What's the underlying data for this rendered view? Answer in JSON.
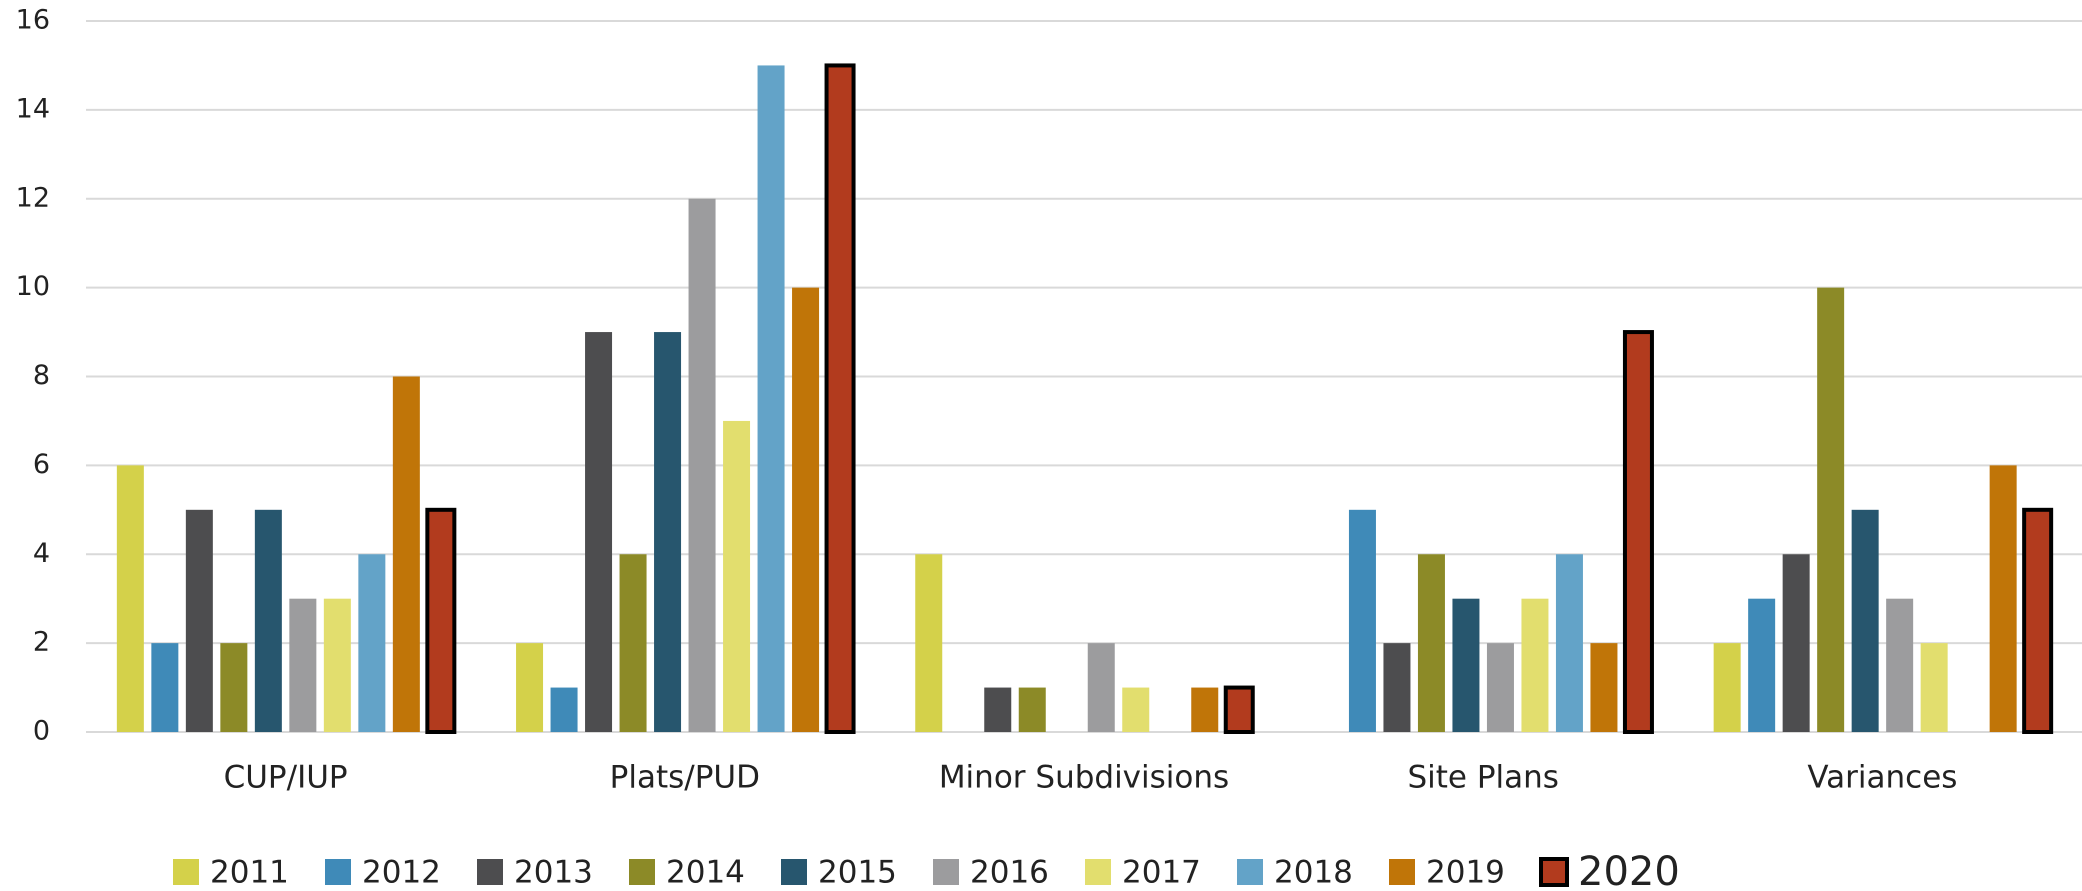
{
  "chart_data": {
    "type": "bar",
    "categories": [
      "CUP/IUP",
      "Plats/PUD",
      "Minor Subdivisions",
      "Site Plans",
      "Variances"
    ],
    "series": [
      {
        "name": "2011",
        "color": "#d4d14a",
        "values": [
          6,
          2,
          4,
          0,
          2
        ]
      },
      {
        "name": "2012",
        "color": "#3f8ab8",
        "values": [
          2,
          1,
          0,
          5,
          3
        ]
      },
      {
        "name": "2013",
        "color": "#4d4d4f",
        "values": [
          5,
          9,
          1,
          2,
          4
        ]
      },
      {
        "name": "2014",
        "color": "#8c8a27",
        "values": [
          2,
          4,
          1,
          4,
          10
        ]
      },
      {
        "name": "2015",
        "color": "#27566e",
        "values": [
          5,
          9,
          0,
          3,
          5
        ]
      },
      {
        "name": "2016",
        "color": "#9c9c9e",
        "values": [
          3,
          12,
          2,
          2,
          3
        ]
      },
      {
        "name": "2017",
        "color": "#e2de6e",
        "values": [
          3,
          7,
          1,
          3,
          2
        ]
      },
      {
        "name": "2018",
        "color": "#63a3c8",
        "values": [
          4,
          15,
          0,
          4,
          0
        ]
      },
      {
        "name": "2019",
        "color": "#c07508",
        "values": [
          8,
          10,
          1,
          2,
          6
        ]
      },
      {
        "name": "2020",
        "color": "#b23b1e",
        "edgecolor": "#000000",
        "values": [
          5,
          15,
          1,
          9,
          5
        ]
      }
    ],
    "ylim": [
      0,
      16
    ],
    "yticks": [
      0,
      2,
      4,
      6,
      8,
      10,
      12,
      14,
      16
    ],
    "grid": true,
    "legend": "bottom"
  }
}
